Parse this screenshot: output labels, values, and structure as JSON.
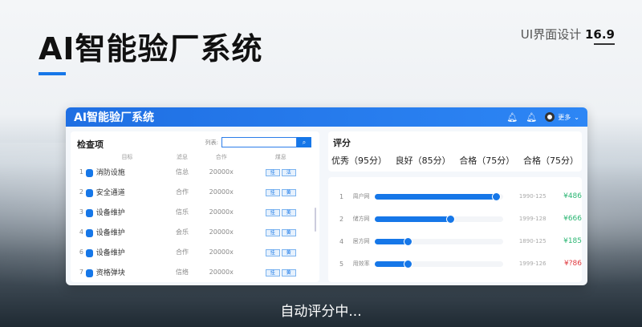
{
  "heading": "AI智能验厂系统",
  "tag": {
    "label": "UI界面设计",
    "version": "16.9"
  },
  "app": {
    "title": "AI智能验厂系统",
    "user": "更多",
    "icons": [
      "bell-icon",
      "bell-icon",
      "chevron-down-icon"
    ]
  },
  "left": {
    "title": "检查项",
    "search_label": "列表:",
    "search_value": "",
    "columns": [
      "目标",
      "滤息",
      "合作",
      "煤息"
    ],
    "rows": [
      {
        "no": "1",
        "name": "消防设施",
        "c2": "信总",
        "c3": "20000x",
        "b1": "挂",
        "b2": "法"
      },
      {
        "no": "2",
        "name": "安全通道",
        "c2": "合作",
        "c3": "20000x",
        "b1": "挂",
        "b2": "黄"
      },
      {
        "no": "3",
        "name": "设备维护",
        "c2": "信乐",
        "c3": "20000x",
        "b1": "挂",
        "b2": "美"
      },
      {
        "no": "4",
        "name": "设备维护",
        "c2": "会乐",
        "c3": "20000x",
        "b1": "挂",
        "b2": "黄"
      },
      {
        "no": "6",
        "name": "设备维护",
        "c2": "合作",
        "c3": "20000x",
        "b1": "挂",
        "b2": "黄"
      },
      {
        "no": "7",
        "name": "资格弹块",
        "c2": "信络",
        "c3": "20000x",
        "b1": "挂",
        "b2": "黄"
      }
    ]
  },
  "right": {
    "title": "评分",
    "scores": [
      "优秀（95分）",
      "良好（85分）",
      "合格（75分）",
      "合格（75分）"
    ],
    "rows": [
      {
        "no": "1",
        "label": "周户网",
        "progress": 0.96,
        "date": "1990-125",
        "value": "¥486",
        "color": "#2bb673"
      },
      {
        "no": "2",
        "label": "储方网",
        "progress": 0.6,
        "date": "1999-128",
        "value": "¥666",
        "color": "#2bb673"
      },
      {
        "no": "4",
        "label": "居方网",
        "progress": 0.27,
        "date": "1890-125",
        "value": "¥185",
        "color": "#2bb673"
      },
      {
        "no": "5",
        "label": "用效率",
        "progress": 0.27,
        "date": "1999-126",
        "value": "¥?86",
        "color": "#e0383e"
      }
    ]
  },
  "caption": "自动评分中..."
}
